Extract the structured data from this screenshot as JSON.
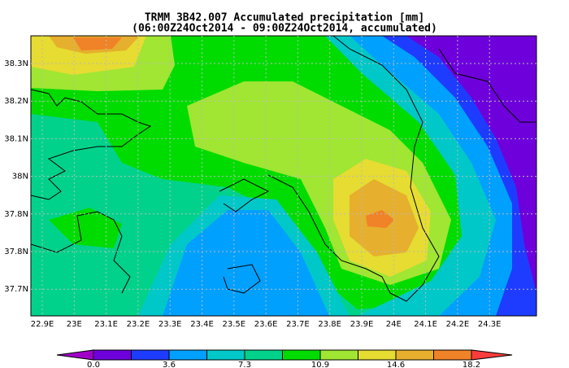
{
  "header": {
    "title": "TRMM 3B42.007 Accumulated precipitation [mm]",
    "subtitle": "(06:00Z24Oct2014 - 09:00Z24Oct2014, accumulated)"
  },
  "x_axis": {
    "labels": [
      "22.9E",
      "23E",
      "23.1E",
      "23.2E",
      "23.3E",
      "23.4E",
      "23.5E",
      "23.6E",
      "23.7E",
      "23.8E",
      "23.9E",
      "24E",
      "24.1E",
      "24.2E",
      "24.3E"
    ]
  },
  "y_axis": {
    "labels": [
      "38.3N",
      "38.2N",
      "38.1N",
      "38N",
      "37.8N",
      "37.8N",
      "37.7N"
    ]
  },
  "colorbar": {
    "colors": [
      "#a000c8",
      "#6e00dc",
      "#1e3cff",
      "#00a0ff",
      "#00c8c8",
      "#00d28c",
      "#00dc00",
      "#a0e632",
      "#e6dc32",
      "#e6af2d",
      "#f08228",
      "#fa3c3c"
    ],
    "labels": [
      "0.0",
      "3.6",
      "7.3",
      "10.9",
      "14.6",
      "18.2"
    ]
  }
}
